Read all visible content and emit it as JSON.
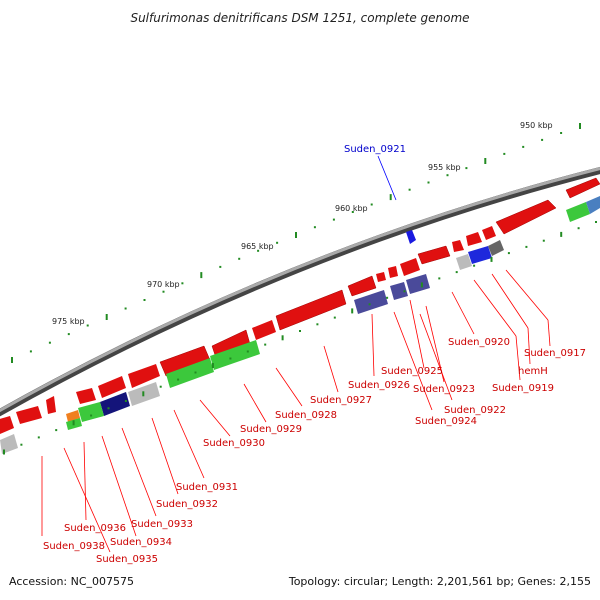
{
  "title": "Sulfurimonas denitrificans DSM 1251, complete genome",
  "ruler_labels": [
    "950 kbp",
    "955 kbp",
    "960 kbp",
    "965 kbp",
    "970 kbp",
    "975 kbp"
  ],
  "gene_labels": [
    {
      "name": "Suden_0921",
      "color": "#0000cc"
    },
    {
      "name": "Suden_0920",
      "color": "#cc0000"
    },
    {
      "name": "Suden_0917",
      "color": "#cc0000"
    },
    {
      "name": "hemH",
      "color": "#cc0000"
    },
    {
      "name": "Suden_0919",
      "color": "#cc0000"
    },
    {
      "name": "Suden_0925",
      "color": "#cc0000"
    },
    {
      "name": "Suden_0926",
      "color": "#cc0000"
    },
    {
      "name": "Suden_0923",
      "color": "#cc0000"
    },
    {
      "name": "Suden_0927",
      "color": "#cc0000"
    },
    {
      "name": "Suden_0922",
      "color": "#cc0000"
    },
    {
      "name": "Suden_0928",
      "color": "#cc0000"
    },
    {
      "name": "Suden_0924",
      "color": "#cc0000"
    },
    {
      "name": "Suden_0929",
      "color": "#cc0000"
    },
    {
      "name": "Suden_0930",
      "color": "#cc0000"
    },
    {
      "name": "Suden_0931",
      "color": "#cc0000"
    },
    {
      "name": "Suden_0932",
      "color": "#cc0000"
    },
    {
      "name": "Suden_0933",
      "color": "#cc0000"
    },
    {
      "name": "Suden_0936",
      "color": "#cc0000"
    },
    {
      "name": "Suden_0934",
      "color": "#cc0000"
    },
    {
      "name": "Suden_0938",
      "color": "#cc0000"
    },
    {
      "name": "Suden_0935",
      "color": "#cc0000"
    }
  ],
  "footer": {
    "accession": "Accession: NC_007575",
    "summary": "Topology: circular; Length: 2,201,561 bp; Genes: 2,155"
  },
  "colors": {
    "backbone": "#777777",
    "cds_forward": "#e01010",
    "cds_dark": "#b00000",
    "cog_green": "#3cc83c",
    "cog_navy": "#14147a",
    "cog_blue": "#1e28dc",
    "cog_slate": "#4a4a9a",
    "cog_gray": "#bbbbbb",
    "cog_darkgray": "#666666",
    "cog_orange": "#f08020",
    "cog_teal": "#4a7fc0",
    "ruler_dot": "#228b22",
    "label_line": "#ff0000",
    "label_line_blue": "#0000ff"
  }
}
